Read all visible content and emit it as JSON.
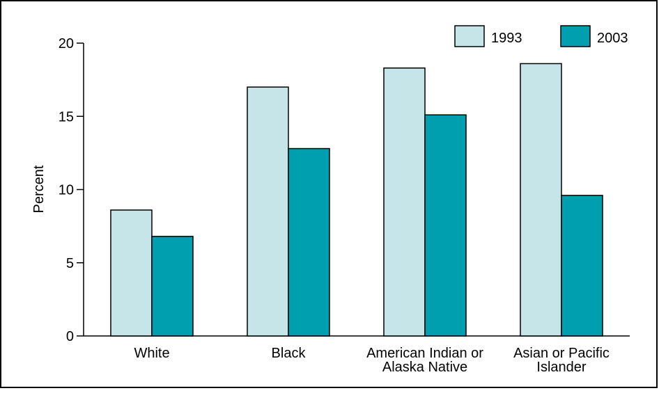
{
  "chart_data": {
    "type": "bar",
    "title": "",
    "xlabel": "",
    "ylabel": "Percent",
    "ylim": [
      0,
      20
    ],
    "yticks": [
      0,
      5,
      10,
      15,
      20
    ],
    "grid": false,
    "legend_position": "top-right",
    "categories": [
      [
        "White"
      ],
      [
        "Black"
      ],
      [
        "American Indian or",
        "Alaska Native"
      ],
      [
        "Asian or Pacific",
        "Islander"
      ]
    ],
    "series": [
      {
        "name": "1993",
        "color": "#c5e5e9",
        "values": [
          8.6,
          17.0,
          18.3,
          18.6
        ]
      },
      {
        "name": "2003",
        "color": "#009faf",
        "values": [
          6.8,
          12.8,
          15.1,
          9.6
        ]
      }
    ]
  }
}
